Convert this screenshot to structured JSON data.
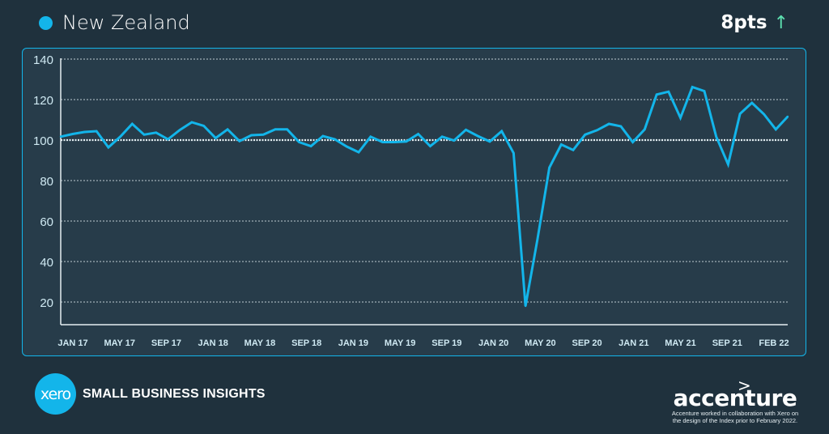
{
  "header": {
    "title": "New Zealand",
    "change": "8pts",
    "change_icon": "arrow-up"
  },
  "colors": {
    "background": "#1f313d",
    "panel": "#273c4a",
    "accent": "#13b5ea",
    "positive": "#5de0b0"
  },
  "chart_data": {
    "type": "line",
    "title": "New Zealand",
    "series": [
      {
        "name": "New Zealand",
        "values": [
          101.7,
          103,
          104,
          104.4,
          96.4,
          101.7,
          108,
          102.7,
          103.7,
          100.4,
          105,
          108.8,
          107,
          101,
          105.3,
          99.5,
          102.4,
          102.7,
          105.3,
          105.3,
          99,
          97,
          102,
          100.4,
          96.8,
          94,
          101.7,
          99,
          99,
          99.3,
          103,
          97,
          101.7,
          99.8,
          105.1,
          102,
          99.3,
          104.4,
          93.6,
          18,
          51,
          86.4,
          97.8,
          95.1,
          102.7,
          104.9,
          108,
          106.8,
          99,
          105.3,
          122.5,
          123.9,
          111,
          126.2,
          124.2,
          101.7,
          88,
          113,
          118.4,
          112.8,
          105.3,
          111.6
        ]
      }
    ],
    "x_start": "JAN 17",
    "x_end": "FEB 22",
    "xtick_labels": [
      "JAN 17",
      "MAY 17",
      "SEP 17",
      "JAN 18",
      "MAY 18",
      "SEP 18",
      "JAN 19",
      "MAY 19",
      "SEP 19",
      "JAN 20",
      "MAY 20",
      "SEP 20",
      "JAN 21",
      "MAY 21",
      "SEP 21",
      "FEB 22"
    ],
    "yticks": [
      20,
      40,
      60,
      80,
      100,
      120,
      140
    ],
    "ylim": [
      10,
      142
    ],
    "baseline": 100,
    "grid": true,
    "xlabel": "",
    "ylabel": ""
  },
  "footer": {
    "brand_logo": "xero",
    "product": "SMALL BUSINESS INSIGHTS",
    "partner_logo": "accenture",
    "partner_note_1": "Accenture worked in collaboration with Xero on",
    "partner_note_2": "the design of the Index prior to February 2022."
  }
}
